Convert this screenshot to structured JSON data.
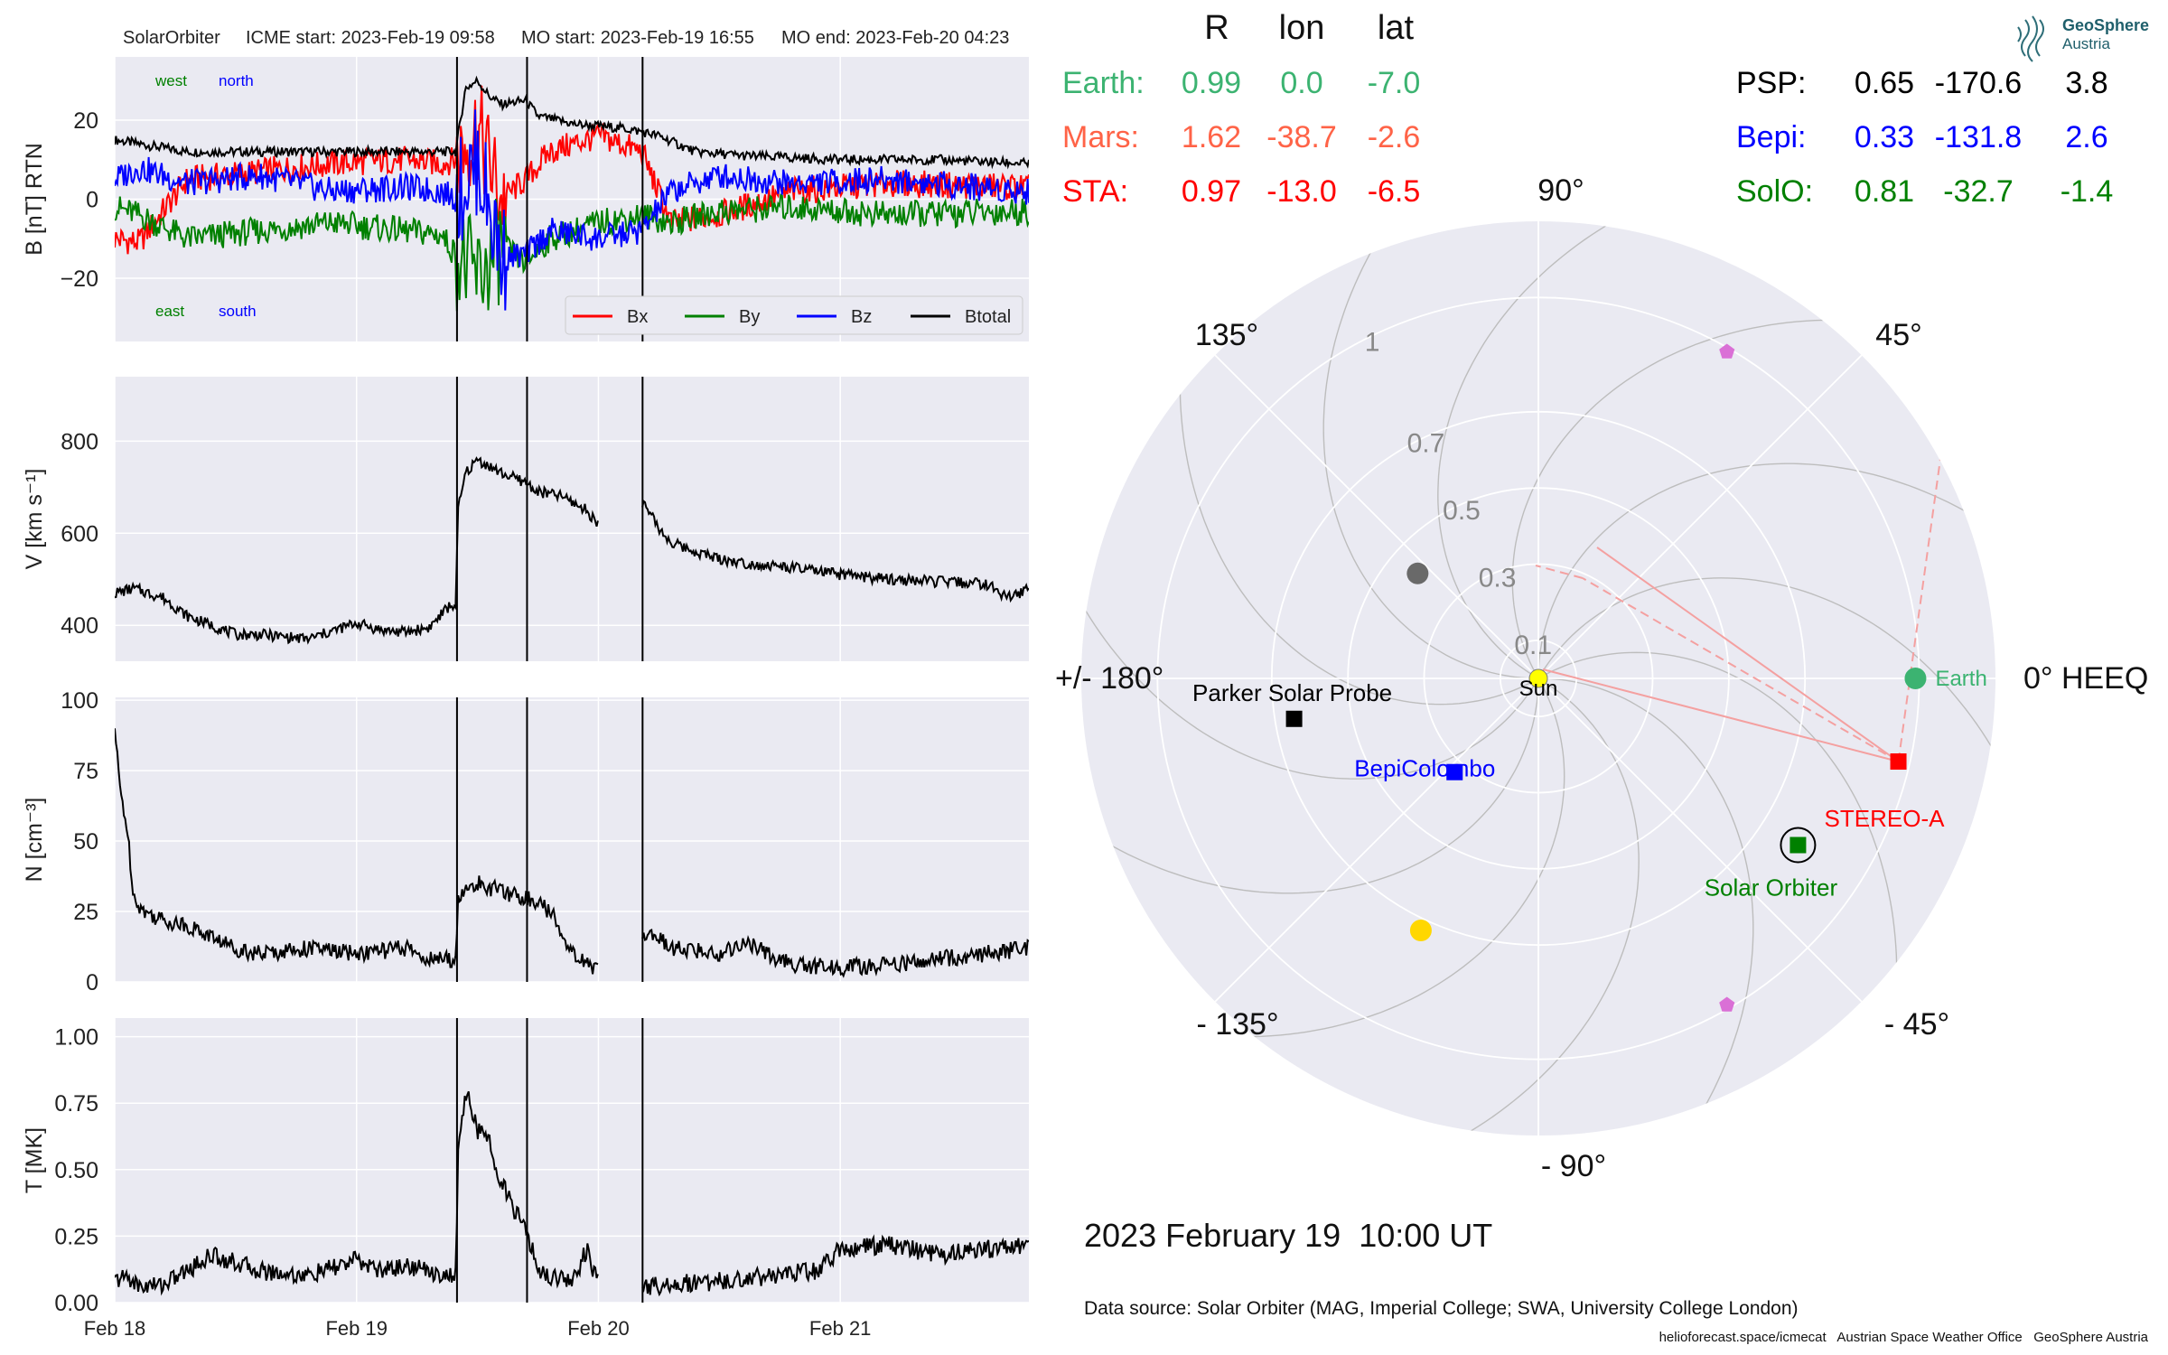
{
  "header": {
    "spacecraft": "SolarOrbiter",
    "icme_start": "ICME start: 2023-Feb-19 09:58",
    "mo_start": "MO start: 2023-Feb-19 16:55",
    "mo_end": "MO end: 2023-Feb-20 04:23"
  },
  "position_table": {
    "columns": [
      "R",
      "lon",
      "lat"
    ],
    "left": [
      {
        "name": "Earth:",
        "R": "0.99",
        "lon": "0.0",
        "lat": "-7.0",
        "color": "#3cb371"
      },
      {
        "name": "Mars:",
        "R": "1.62",
        "lon": "-38.7",
        "lat": "-2.6",
        "color": "#ff6347"
      },
      {
        "name": "STA:",
        "R": "0.97",
        "lon": "-13.0",
        "lat": "-6.5",
        "color": "#ff0000"
      }
    ],
    "right": [
      {
        "name": "PSP:",
        "R": "0.65",
        "lon": "-170.6",
        "lat": "3.8",
        "color": "#000000"
      },
      {
        "name": "Bepi:",
        "R": "0.33",
        "lon": "-131.8",
        "lat": "2.6",
        "color": "#0000ff"
      },
      {
        "name": "SolO:",
        "R": "0.81",
        "lon": "-32.7",
        "lat": "-1.4",
        "color": "#008000"
      }
    ]
  },
  "logo": {
    "line1": "GeoSphere",
    "line2": "Austria"
  },
  "date_label": "2023 February 19  10:00 UT",
  "data_source": "Data source: Solar Orbiter (MAG, Imperial College; SWA, University College London)",
  "credits": "helioforecast.space/icmecat   Austrian Space Weather Office   GeoSphere Austria",
  "colors": {
    "bx": "#ff0000",
    "by": "#008000",
    "bz": "#0000ff",
    "btotal": "#000000",
    "panel_bg": "#eaeaf2",
    "grid": "#ffffff"
  },
  "chart_data": [
    {
      "type": "line",
      "name": "B panel",
      "ylabel": "B [nT] RTN",
      "ylim": [
        -36,
        36
      ],
      "yticks": [
        -20,
        0,
        20
      ],
      "ytick_labels": [
        "−20",
        "0",
        "20"
      ],
      "xlim": [
        0,
        3.78
      ],
      "xticks": [
        0,
        1,
        2,
        3
      ],
      "xtick_labels": [
        "Feb 18",
        "Feb 19",
        "Feb 20",
        "Feb 21"
      ],
      "event_lines": [
        1.4153,
        1.7049,
        2.1826
      ],
      "corner_labels": {
        "west": "west",
        "north": "north",
        "east": "east",
        "south": "south"
      },
      "legend": [
        "Bx",
        "By",
        "Bz",
        "Btotal"
      ],
      "legend_position": "lower-right",
      "series": [
        {
          "name": "Btotal",
          "x": [
            0,
            0.1,
            0.3,
            0.6,
            0.9,
            1.2,
            1.35,
            1.41,
            1.45,
            1.5,
            1.55,
            1.6,
            1.7,
            1.75,
            1.9,
            2.1,
            2.18,
            2.25,
            2.4,
            2.6,
            3.0,
            3.4,
            3.78
          ],
          "y": [
            15,
            14,
            12,
            12,
            12,
            12,
            12,
            12,
            28,
            30,
            26,
            24,
            25,
            21,
            19,
            18,
            17,
            16,
            12,
            11,
            10,
            10,
            9
          ]
        },
        {
          "name": "Bx",
          "x": [
            0,
            0.1,
            0.3,
            0.6,
            0.9,
            1.2,
            1.35,
            1.41,
            1.5,
            1.6,
            1.7,
            1.8,
            2.0,
            2.18,
            2.3,
            2.5,
            2.8,
            3.2,
            3.78
          ],
          "y": [
            -10,
            -11,
            5,
            7,
            9,
            10,
            9,
            10,
            18,
            0,
            5,
            12,
            16,
            12,
            -6,
            -4,
            2,
            4,
            3
          ]
        },
        {
          "name": "By",
          "x": [
            0,
            0.1,
            0.3,
            0.6,
            0.9,
            1.2,
            1.35,
            1.41,
            1.5,
            1.6,
            1.7,
            1.8,
            2.0,
            2.18,
            2.3,
            2.5,
            2.8,
            3.2,
            3.78
          ],
          "y": [
            -2,
            -4,
            -10,
            -8,
            -6,
            -8,
            -9,
            -14,
            -20,
            -12,
            -16,
            -10,
            -6,
            -4,
            -6,
            -3,
            -2,
            -4,
            -3
          ]
        },
        {
          "name": "Bz",
          "x": [
            0,
            0.1,
            0.3,
            0.6,
            0.9,
            1.2,
            1.35,
            1.41,
            1.5,
            1.6,
            1.7,
            1.8,
            2.0,
            2.18,
            2.3,
            2.5,
            2.8,
            3.2,
            3.78
          ],
          "y": [
            5,
            8,
            4,
            6,
            2,
            3,
            2,
            0,
            10,
            -15,
            -14,
            -8,
            -10,
            -8,
            2,
            6,
            4,
            5,
            2
          ]
        }
      ]
    },
    {
      "type": "line",
      "name": "V panel",
      "ylabel": "V [km s⁻¹]",
      "ylim": [
        322,
        940
      ],
      "yticks": [
        400,
        600,
        800
      ],
      "xlim": [
        0,
        3.78
      ],
      "xticks": [
        0,
        1,
        2,
        3
      ],
      "event_lines": [
        1.4153,
        1.7049,
        2.1826
      ],
      "gaps": [
        [
          2.0,
          2.18
        ]
      ],
      "series": [
        {
          "name": "V",
          "x": [
            0,
            0.08,
            0.15,
            0.2,
            0.3,
            0.5,
            0.6,
            0.7,
            0.8,
            1.0,
            1.1,
            1.2,
            1.3,
            1.38,
            1.41,
            1.42,
            1.45,
            1.5,
            1.6,
            1.7,
            1.75,
            1.85,
            1.95,
            2.0,
            2.18,
            2.25,
            2.3,
            2.4,
            2.5,
            2.6,
            2.8,
            3.0,
            3.2,
            3.4,
            3.6,
            3.7,
            3.78
          ],
          "y": [
            470,
            480,
            468,
            460,
            420,
            380,
            380,
            375,
            370,
            405,
            390,
            385,
            395,
            440,
            445,
            650,
            730,
            760,
            730,
            710,
            690,
            680,
            650,
            620,
            670,
            610,
            580,
            560,
            545,
            535,
            525,
            510,
            500,
            495,
            490,
            460,
            480
          ]
        }
      ]
    },
    {
      "type": "line",
      "name": "N panel",
      "ylabel": "N [cm⁻³]",
      "ylim": [
        0,
        101
      ],
      "yticks": [
        0,
        25,
        50,
        75,
        100
      ],
      "xlim": [
        0,
        3.78
      ],
      "xticks": [
        0,
        1,
        2,
        3
      ],
      "event_lines": [
        1.4153,
        1.7049,
        2.1826
      ],
      "gaps": [
        [
          2.0,
          2.18
        ]
      ],
      "series": [
        {
          "name": "N",
          "x": [
            0,
            0.02,
            0.05,
            0.08,
            0.12,
            0.2,
            0.3,
            0.4,
            0.5,
            0.6,
            0.8,
            1.0,
            1.2,
            1.3,
            1.41,
            1.42,
            1.5,
            1.6,
            1.7,
            1.75,
            1.8,
            1.9,
            1.95,
            2.0,
            2.18,
            2.2,
            2.3,
            2.5,
            2.6,
            2.8,
            3.0,
            3.2,
            3.4,
            3.6,
            3.78
          ],
          "y": [
            90,
            70,
            55,
            30,
            25,
            22,
            20,
            16,
            12,
            10,
            12,
            10,
            12,
            8,
            8,
            30,
            35,
            32,
            30,
            28,
            25,
            10,
            6,
            5,
            15,
            18,
            12,
            10,
            14,
            6,
            5,
            6,
            8,
            10,
            12
          ]
        }
      ]
    },
    {
      "type": "line",
      "name": "T panel",
      "ylabel": "T [MK]",
      "ylim": [
        0,
        1.07
      ],
      "yticks": [
        0,
        0.25,
        0.5,
        0.75,
        1.0
      ],
      "ytick_labels": [
        "0.00",
        "0.25",
        "0.50",
        "0.75",
        "1.00"
      ],
      "xlim": [
        0,
        3.78
      ],
      "xticks": [
        0,
        1,
        2,
        3
      ],
      "xtick_labels": [
        "Feb 18",
        "Feb 19",
        "Feb 20",
        "Feb 21"
      ],
      "event_lines": [
        1.4153,
        1.7049,
        2.1826
      ],
      "gaps": [
        [
          2.0,
          2.18
        ]
      ],
      "series": [
        {
          "name": "T",
          "x": [
            0,
            0.05,
            0.1,
            0.2,
            0.3,
            0.4,
            0.5,
            0.6,
            0.8,
            1.0,
            1.1,
            1.2,
            1.3,
            1.38,
            1.41,
            1.42,
            1.45,
            1.5,
            1.55,
            1.6,
            1.65,
            1.7,
            1.75,
            1.8,
            1.9,
            1.95,
            2.0,
            2.18,
            2.3,
            2.5,
            2.7,
            2.9,
            3.0,
            3.2,
            3.4,
            3.6,
            3.78
          ],
          "y": [
            0.08,
            0.1,
            0.06,
            0.07,
            0.12,
            0.18,
            0.15,
            0.12,
            0.1,
            0.16,
            0.12,
            0.14,
            0.12,
            0.1,
            0.1,
            0.55,
            0.8,
            0.65,
            0.6,
            0.45,
            0.35,
            0.28,
            0.12,
            0.1,
            0.09,
            0.2,
            0.07,
            0.06,
            0.07,
            0.08,
            0.1,
            0.12,
            0.2,
            0.22,
            0.18,
            0.2,
            0.22
          ]
        }
      ]
    },
    {
      "type": "polar",
      "name": "Position plot",
      "coordinate_label": "0° HEEQ",
      "rmax": 1.2,
      "radial_ticks": [
        0.1,
        0.3,
        0.5,
        0.7,
        1.0
      ],
      "angle_labels": [
        {
          "angle": 0,
          "text": "0° HEEQ"
        },
        {
          "angle": 45,
          "text": "45°"
        },
        {
          "angle": 90,
          "text": "90°"
        },
        {
          "angle": 135,
          "text": "135°"
        },
        {
          "angle": 180,
          "text": "+/- 180°"
        },
        {
          "angle": -135,
          "text": "- 135°"
        },
        {
          "angle": -90,
          "text": "- 90°"
        },
        {
          "angle": -45,
          "text": "- 45°"
        }
      ],
      "bodies": [
        {
          "name": "Sun",
          "r": 0.0,
          "lon": 0.0,
          "color": "#ffff00",
          "marker": "circle",
          "label": "Sun"
        },
        {
          "name": "Earth",
          "r": 0.99,
          "lon": 0.0,
          "color": "#3cb371",
          "marker": "circle",
          "label": "Earth"
        },
        {
          "name": "STEREO-A",
          "r": 0.97,
          "lon": -13.0,
          "color": "#ff0000",
          "marker": "square",
          "label": "STEREO-A"
        },
        {
          "name": "Solar Orbiter",
          "r": 0.81,
          "lon": -32.7,
          "color": "#008000",
          "marker": "square",
          "label": "Solar Orbiter"
        },
        {
          "name": "Parker Solar Probe",
          "r": 0.65,
          "lon": -170.6,
          "color": "#000000",
          "marker": "square",
          "label": "Parker Solar Probe"
        },
        {
          "name": "BepiColombo",
          "r": 0.33,
          "lon": -131.8,
          "color": "#0000ff",
          "marker": "square",
          "label": "BepiColombo"
        },
        {
          "name": "Mercury",
          "r": 0.42,
          "lon": 139.0,
          "color": "#696969",
          "marker": "circle",
          "label": ""
        },
        {
          "name": "Venus",
          "r": 0.73,
          "lon": -115.0,
          "color": "#ffd700",
          "marker": "circle",
          "label": ""
        },
        {
          "name": "L5",
          "r": 0.99,
          "lon": -60.0,
          "color": "#da70d6",
          "marker": "pentagon",
          "label": ""
        },
        {
          "name": "L4",
          "r": 0.99,
          "lon": 60.0,
          "color": "#da70d6",
          "marker": "pentagon",
          "label": ""
        }
      ]
    }
  ]
}
